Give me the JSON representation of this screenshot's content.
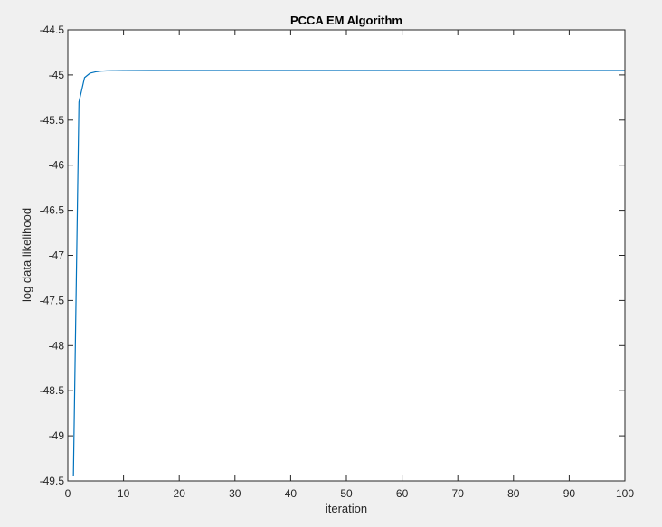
{
  "chart_data": {
    "type": "line",
    "title": "PCCA EM Algorithm",
    "xlabel": "iteration",
    "ylabel": "log data likelihood",
    "xlim": [
      0,
      100
    ],
    "ylim": [
      -49.5,
      -44.5
    ],
    "xticks": [
      0,
      10,
      20,
      30,
      40,
      50,
      60,
      70,
      80,
      90,
      100
    ],
    "xtick_labels": [
      "0",
      "10",
      "20",
      "30",
      "40",
      "50",
      "60",
      "70",
      "80",
      "90",
      "100"
    ],
    "yticks": [
      -49.5,
      -49,
      -48.5,
      -48,
      -47.5,
      -47,
      -46.5,
      -46,
      -45.5,
      -45,
      -44.5
    ],
    "ytick_labels": [
      "-49.5",
      "-49",
      "-48.5",
      "-48",
      "-47.5",
      "-47",
      "-46.5",
      "-46",
      "-45.5",
      "-45",
      "-44.5"
    ],
    "grid": false,
    "series": [
      {
        "name": "log data likelihood",
        "color": "#0072bd",
        "x": [
          1,
          2,
          3,
          4,
          5,
          6,
          7,
          8,
          10,
          15,
          20,
          30,
          40,
          50,
          60,
          70,
          80,
          90,
          100
        ],
        "y": [
          -49.45,
          -45.3,
          -45.03,
          -44.98,
          -44.965,
          -44.958,
          -44.955,
          -44.953,
          -44.952,
          -44.951,
          -44.951,
          -44.951,
          -44.951,
          -44.951,
          -44.951,
          -44.951,
          -44.951,
          -44.951,
          -44.951
        ]
      }
    ]
  },
  "colors": {
    "figure_background": "#f0f0f0",
    "axes_background": "#ffffff",
    "axis_color": "#262626",
    "line_color": "#0072bd"
  }
}
